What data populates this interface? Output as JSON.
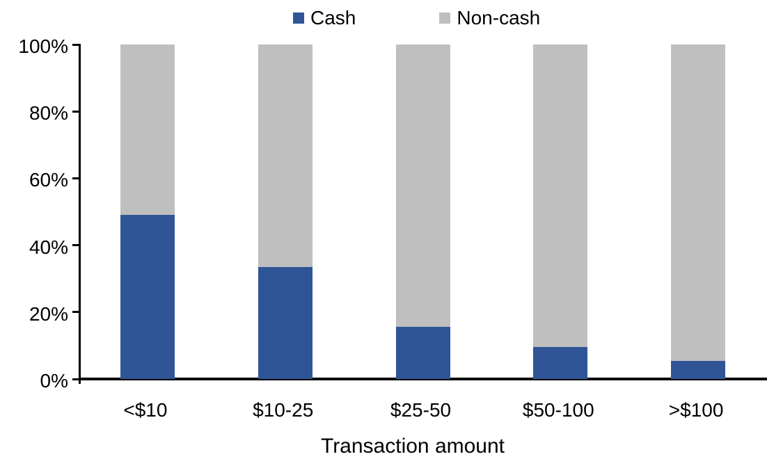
{
  "chart_data": {
    "type": "bar",
    "stacked": true,
    "title": "",
    "xlabel": "Transaction amount",
    "ylabel": "",
    "categories": [
      "<$10",
      "$10-25",
      "$25-50",
      "$50-100",
      ">$100"
    ],
    "series": [
      {
        "name": "Cash",
        "color": "#2F5597",
        "values": [
          49,
          33.5,
          15.5,
          9.5,
          5.5
        ]
      },
      {
        "name": "Non-cash",
        "color": "#BFBFBF",
        "values": [
          51,
          66.5,
          84.5,
          90.5,
          94.5
        ]
      }
    ],
    "ylim": [
      0,
      100
    ],
    "yticks": [
      "0%",
      "20%",
      "40%",
      "60%",
      "80%",
      "100%"
    ],
    "legend_position": "top",
    "grid": false,
    "axis_color": "#000000"
  }
}
